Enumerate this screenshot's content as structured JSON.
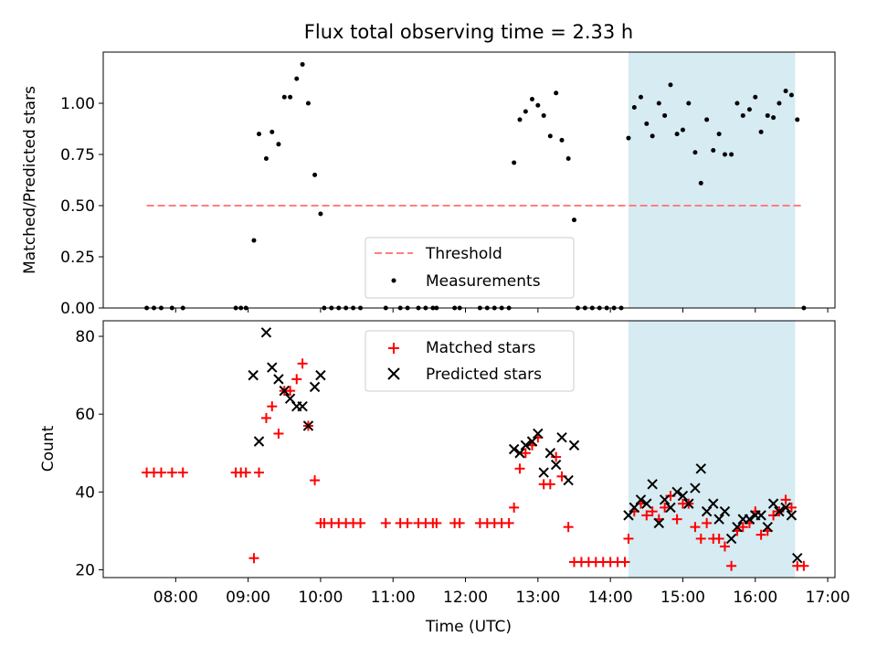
{
  "chart_data": [
    {
      "type": "scatter",
      "title": "Flux total observing time = 2.33 h",
      "xlabel": "",
      "ylabel": "Matched/Predicted stars",
      "xlim_hours": [
        7.0,
        17.1
      ],
      "ylim": [
        0,
        1.25
      ],
      "yticks": [
        0.0,
        0.25,
        0.5,
        0.75,
        1.0
      ],
      "ytick_labels": [
        "0.00",
        "0.25",
        "0.50",
        "0.75",
        "1.00"
      ],
      "shaded_span_hours": [
        14.25,
        16.55
      ],
      "shaded_color": "#add8e6",
      "legend_position": "lower-center",
      "threshold": {
        "name": "Threshold",
        "value": 0.5,
        "x_range_hours": [
          7.6,
          16.67
        ],
        "color": "#ff7f7f"
      },
      "series": [
        {
          "name": "Measurements",
          "color": "#000000",
          "marker": "dot",
          "points": [
            [
              7.6,
              0
            ],
            [
              7.7,
              0
            ],
            [
              7.8,
              0
            ],
            [
              7.95,
              0
            ],
            [
              8.1,
              0
            ],
            [
              8.83,
              0
            ],
            [
              8.9,
              0
            ],
            [
              8.97,
              0
            ],
            [
              9.08,
              0.33
            ],
            [
              9.15,
              0.85
            ],
            [
              9.25,
              0.73
            ],
            [
              9.33,
              0.86
            ],
            [
              9.42,
              0.8
            ],
            [
              9.5,
              1.03
            ],
            [
              9.58,
              1.03
            ],
            [
              9.67,
              1.12
            ],
            [
              9.75,
              1.19
            ],
            [
              9.83,
              1.0
            ],
            [
              9.92,
              0.65
            ],
            [
              10.0,
              0.46
            ],
            [
              10.05,
              0
            ],
            [
              10.15,
              0
            ],
            [
              10.25,
              0
            ],
            [
              10.35,
              0
            ],
            [
              10.45,
              0
            ],
            [
              10.55,
              0
            ],
            [
              10.9,
              0
            ],
            [
              11.1,
              0
            ],
            [
              11.2,
              0
            ],
            [
              11.35,
              0
            ],
            [
              11.45,
              0
            ],
            [
              11.55,
              0
            ],
            [
              11.6,
              0
            ],
            [
              11.85,
              0
            ],
            [
              11.92,
              0
            ],
            [
              12.2,
              0
            ],
            [
              12.3,
              0
            ],
            [
              12.4,
              0
            ],
            [
              12.5,
              0
            ],
            [
              12.6,
              0
            ],
            [
              12.67,
              0.71
            ],
            [
              12.75,
              0.92
            ],
            [
              12.83,
              0.96
            ],
            [
              12.92,
              1.02
            ],
            [
              13.0,
              0.99
            ],
            [
              13.08,
              0.94
            ],
            [
              13.17,
              0.84
            ],
            [
              13.25,
              1.05
            ],
            [
              13.33,
              0.82
            ],
            [
              13.42,
              0.73
            ],
            [
              13.5,
              0.43
            ],
            [
              13.55,
              0
            ],
            [
              13.65,
              0
            ],
            [
              13.75,
              0
            ],
            [
              13.85,
              0
            ],
            [
              13.95,
              0
            ],
            [
              14.05,
              0
            ],
            [
              14.15,
              0
            ],
            [
              14.25,
              0.83
            ],
            [
              14.33,
              0.98
            ],
            [
              14.42,
              1.03
            ],
            [
              14.5,
              0.9
            ],
            [
              14.58,
              0.84
            ],
            [
              14.67,
              1.0
            ],
            [
              14.75,
              0.94
            ],
            [
              14.83,
              1.09
            ],
            [
              14.92,
              0.85
            ],
            [
              15.0,
              0.87
            ],
            [
              15.08,
              1.0
            ],
            [
              15.17,
              0.76
            ],
            [
              15.25,
              0.61
            ],
            [
              15.33,
              0.92
            ],
            [
              15.42,
              0.77
            ],
            [
              15.5,
              0.85
            ],
            [
              15.58,
              0.75
            ],
            [
              15.67,
              0.75
            ],
            [
              15.75,
              1.0
            ],
            [
              15.83,
              0.94
            ],
            [
              15.92,
              0.97
            ],
            [
              16.0,
              1.03
            ],
            [
              16.08,
              0.86
            ],
            [
              16.17,
              0.94
            ],
            [
              16.25,
              0.93
            ],
            [
              16.33,
              1.0
            ],
            [
              16.42,
              1.06
            ],
            [
              16.5,
              1.04
            ],
            [
              16.58,
              0.92
            ],
            [
              16.67,
              0
            ]
          ]
        }
      ]
    },
    {
      "type": "scatter",
      "title": "",
      "xlabel": "Time (UTC)",
      "ylabel": "Count",
      "xlim_hours": [
        7.0,
        17.1
      ],
      "ylim": [
        18,
        84
      ],
      "yticks": [
        20,
        40,
        60,
        80
      ],
      "ytick_labels": [
        "20",
        "40",
        "60",
        "80"
      ],
      "xticks_hours": [
        8,
        9,
        10,
        11,
        12,
        13,
        14,
        15,
        16,
        17
      ],
      "xtick_labels": [
        "08:00",
        "09:00",
        "10:00",
        "11:00",
        "12:00",
        "13:00",
        "14:00",
        "15:00",
        "16:00",
        "17:00"
      ],
      "shaded_span_hours": [
        14.25,
        16.55
      ],
      "shaded_color": "#add8e6",
      "legend_position": "upper-center",
      "series": [
        {
          "name": "Matched stars",
          "color": "#ff0000",
          "marker": "plus",
          "points": [
            [
              7.6,
              45
            ],
            [
              7.7,
              45
            ],
            [
              7.8,
              45
            ],
            [
              7.95,
              45
            ],
            [
              8.1,
              45
            ],
            [
              8.83,
              45
            ],
            [
              8.9,
              45
            ],
            [
              8.97,
              45
            ],
            [
              9.08,
              23
            ],
            [
              9.15,
              45
            ],
            [
              9.25,
              59
            ],
            [
              9.33,
              62
            ],
            [
              9.42,
              55
            ],
            [
              9.5,
              66
            ],
            [
              9.58,
              66
            ],
            [
              9.67,
              69
            ],
            [
              9.75,
              73
            ],
            [
              9.83,
              57
            ],
            [
              9.92,
              43
            ],
            [
              10.0,
              32
            ],
            [
              10.05,
              32
            ],
            [
              10.15,
              32
            ],
            [
              10.25,
              32
            ],
            [
              10.35,
              32
            ],
            [
              10.45,
              32
            ],
            [
              10.55,
              32
            ],
            [
              10.9,
              32
            ],
            [
              11.1,
              32
            ],
            [
              11.2,
              32
            ],
            [
              11.35,
              32
            ],
            [
              11.45,
              32
            ],
            [
              11.55,
              32
            ],
            [
              11.6,
              32
            ],
            [
              11.85,
              32
            ],
            [
              11.92,
              32
            ],
            [
              12.2,
              32
            ],
            [
              12.3,
              32
            ],
            [
              12.4,
              32
            ],
            [
              12.5,
              32
            ],
            [
              12.6,
              32
            ],
            [
              12.67,
              36
            ],
            [
              12.75,
              46
            ],
            [
              12.83,
              50
            ],
            [
              12.92,
              52
            ],
            [
              13.0,
              54
            ],
            [
              13.08,
              42
            ],
            [
              13.17,
              42
            ],
            [
              13.25,
              49
            ],
            [
              13.33,
              44
            ],
            [
              13.42,
              31
            ],
            [
              13.5,
              22
            ],
            [
              13.6,
              22
            ],
            [
              13.7,
              22
            ],
            [
              13.8,
              22
            ],
            [
              13.9,
              22
            ],
            [
              14.0,
              22
            ],
            [
              14.1,
              22
            ],
            [
              14.2,
              22
            ],
            [
              14.25,
              28
            ],
            [
              14.33,
              35
            ],
            [
              14.42,
              37
            ],
            [
              14.5,
              34
            ],
            [
              14.58,
              35
            ],
            [
              14.67,
              33
            ],
            [
              14.75,
              36
            ],
            [
              14.83,
              39
            ],
            [
              14.92,
              33
            ],
            [
              15.0,
              37
            ],
            [
              15.08,
              37
            ],
            [
              15.17,
              31
            ],
            [
              15.25,
              28
            ],
            [
              15.33,
              32
            ],
            [
              15.42,
              28
            ],
            [
              15.5,
              28
            ],
            [
              15.58,
              26
            ],
            [
              15.67,
              21
            ],
            [
              15.75,
              30
            ],
            [
              15.83,
              31
            ],
            [
              15.92,
              32
            ],
            [
              16.0,
              35
            ],
            [
              16.08,
              29
            ],
            [
              16.17,
              30
            ],
            [
              16.25,
              34
            ],
            [
              16.33,
              35
            ],
            [
              16.42,
              38
            ],
            [
              16.5,
              36
            ],
            [
              16.58,
              21
            ],
            [
              16.67,
              21
            ]
          ]
        },
        {
          "name": "Predicted stars",
          "color": "#000000",
          "marker": "x",
          "points": [
            [
              9.07,
              70
            ],
            [
              9.15,
              53
            ],
            [
              9.25,
              81
            ],
            [
              9.33,
              72
            ],
            [
              9.42,
              69
            ],
            [
              9.5,
              66
            ],
            [
              9.58,
              64
            ],
            [
              9.67,
              62
            ],
            [
              9.75,
              62
            ],
            [
              9.83,
              57
            ],
            [
              9.92,
              67
            ],
            [
              10.0,
              70
            ],
            [
              12.67,
              51
            ],
            [
              12.75,
              50
            ],
            [
              12.83,
              52
            ],
            [
              12.92,
              53
            ],
            [
              13.0,
              55
            ],
            [
              13.08,
              45
            ],
            [
              13.17,
              50
            ],
            [
              13.25,
              47
            ],
            [
              13.33,
              54
            ],
            [
              13.42,
              43
            ],
            [
              13.5,
              52
            ],
            [
              14.25,
              34
            ],
            [
              14.33,
              36
            ],
            [
              14.42,
              38
            ],
            [
              14.5,
              37
            ],
            [
              14.58,
              42
            ],
            [
              14.67,
              32
            ],
            [
              14.75,
              38
            ],
            [
              14.83,
              36
            ],
            [
              14.92,
              40
            ],
            [
              15.0,
              39
            ],
            [
              15.08,
              37
            ],
            [
              15.17,
              41
            ],
            [
              15.25,
              46
            ],
            [
              15.33,
              35
            ],
            [
              15.42,
              37
            ],
            [
              15.5,
              33
            ],
            [
              15.58,
              35
            ],
            [
              15.67,
              28
            ],
            [
              15.75,
              31
            ],
            [
              15.83,
              33
            ],
            [
              15.92,
              33
            ],
            [
              16.0,
              34
            ],
            [
              16.08,
              34
            ],
            [
              16.17,
              31
            ],
            [
              16.25,
              37
            ],
            [
              16.33,
              35
            ],
            [
              16.42,
              36
            ],
            [
              16.5,
              34
            ],
            [
              16.58,
              23
            ]
          ]
        }
      ]
    }
  ]
}
